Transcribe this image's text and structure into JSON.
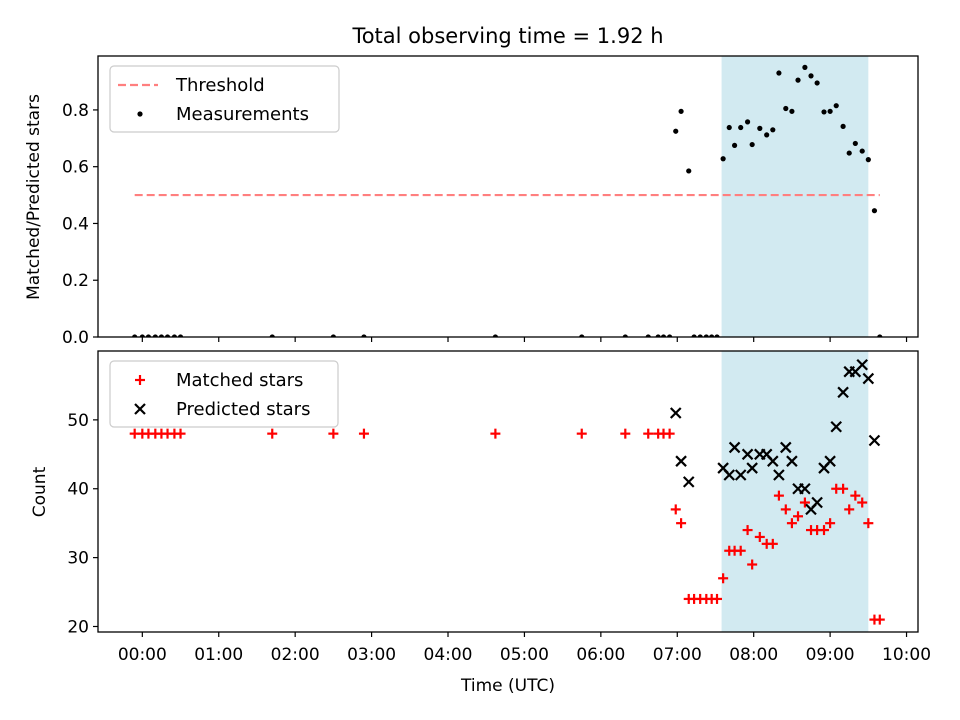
{
  "chart_data": [
    {
      "type": "scatter",
      "title": "Total observing time = 1.92 h",
      "ylabel": "Matched/Predicted stars",
      "xlabel": "",
      "xlim_hours": [
        -0.58,
        10.15
      ],
      "ylim": [
        0,
        0.99
      ],
      "yticks": [
        0.0,
        0.2,
        0.4,
        0.6,
        0.8
      ],
      "ytick_labels": [
        "0.0",
        "0.2",
        "0.4",
        "0.6",
        "0.8"
      ],
      "grid": false,
      "legend": {
        "placement": "top-left",
        "entries": [
          "Threshold",
          "Measurements"
        ]
      },
      "shaded_region_hours": [
        7.58,
        9.5
      ],
      "shaded_color": "#add8e6",
      "threshold": {
        "name": "Threshold",
        "y": 0.5,
        "x_range_hours": [
          -0.1,
          9.65
        ],
        "color": "#ff7f7f",
        "style": "dashed"
      },
      "series": [
        {
          "name": "Measurements",
          "marker": "dot",
          "color": "#000000",
          "x_hours": [
            -0.1,
            0.0,
            0.08,
            0.17,
            0.25,
            0.33,
            0.42,
            0.5,
            1.7,
            2.5,
            2.9,
            4.62,
            5.75,
            6.32,
            6.62,
            6.75,
            6.82,
            6.9,
            6.98,
            7.05,
            7.15,
            7.22,
            7.3,
            7.38,
            7.45,
            7.52,
            7.6,
            7.68,
            7.75,
            7.83,
            7.92,
            7.98,
            8.08,
            8.17,
            8.25,
            8.33,
            8.42,
            8.5,
            8.58,
            8.67,
            8.75,
            8.83,
            8.92,
            9.0,
            9.08,
            9.17,
            9.25,
            9.33,
            9.42,
            9.5,
            9.58,
            9.65
          ],
          "y": [
            0,
            0,
            0,
            0,
            0,
            0,
            0,
            0,
            0,
            0,
            0,
            0,
            0,
            0,
            0,
            0,
            0,
            0,
            0.725,
            0.795,
            0.585,
            0,
            0,
            0,
            0,
            0,
            0.628,
            0.738,
            0.675,
            0.738,
            0.758,
            0.678,
            0.735,
            0.712,
            0.73,
            0.93,
            0.805,
            0.795,
            0.905,
            0.95,
            0.92,
            0.895,
            0.793,
            0.795,
            0.815,
            0.742,
            0.648,
            0.682,
            0.655,
            0.625,
            0.445,
            0
          ]
        }
      ]
    },
    {
      "type": "scatter",
      "title": "",
      "ylabel": "Count",
      "xlabel": "Time (UTC)",
      "xlim_hours": [
        -0.58,
        10.15
      ],
      "ylim": [
        19.2,
        60.0
      ],
      "yticks": [
        20,
        30,
        40,
        50
      ],
      "ytick_labels": [
        "20",
        "30",
        "40",
        "50"
      ],
      "xticks_hours": [
        0,
        1,
        2,
        3,
        4,
        5,
        6,
        7,
        8,
        9,
        10
      ],
      "xtick_labels": [
        "00:00",
        "01:00",
        "02:00",
        "03:00",
        "04:00",
        "05:00",
        "06:00",
        "07:00",
        "08:00",
        "09:00",
        "10:00"
      ],
      "grid": false,
      "legend": {
        "placement": "top-left",
        "entries": [
          "Matched stars",
          "Predicted stars"
        ]
      },
      "shaded_region_hours": [
        7.58,
        9.5
      ],
      "shaded_color": "#add8e6",
      "series": [
        {
          "name": "Matched stars",
          "marker": "plus",
          "color": "#ff0000",
          "x_hours": [
            -0.1,
            0.0,
            0.08,
            0.17,
            0.25,
            0.33,
            0.42,
            0.5,
            1.7,
            2.5,
            2.9,
            4.62,
            5.75,
            6.32,
            6.62,
            6.75,
            6.82,
            6.9,
            6.98,
            7.05,
            7.15,
            7.22,
            7.3,
            7.38,
            7.45,
            7.52,
            7.6,
            7.68,
            7.75,
            7.83,
            7.92,
            7.98,
            8.08,
            8.17,
            8.25,
            8.33,
            8.42,
            8.5,
            8.58,
            8.67,
            8.75,
            8.83,
            8.92,
            9.0,
            9.08,
            9.17,
            9.25,
            9.33,
            9.42,
            9.5,
            9.58,
            9.65
          ],
          "y": [
            48,
            48,
            48,
            48,
            48,
            48,
            48,
            48,
            48,
            48,
            48,
            48,
            48,
            48,
            48,
            48,
            48,
            48,
            37,
            35,
            24,
            24,
            24,
            24,
            24,
            24,
            27,
            31,
            31,
            31,
            34,
            29,
            33,
            32,
            32,
            39,
            37,
            35,
            36,
            38,
            34,
            34,
            34,
            35,
            40,
            40,
            37,
            39,
            38,
            35,
            21,
            21
          ]
        },
        {
          "name": "Predicted stars",
          "marker": "x",
          "color": "#000000",
          "x_hours": [
            6.98,
            7.05,
            7.15,
            7.6,
            7.68,
            7.75,
            7.83,
            7.92,
            7.98,
            8.08,
            8.17,
            8.25,
            8.33,
            8.42,
            8.5,
            8.58,
            8.67,
            8.75,
            8.83,
            8.92,
            9.0,
            9.08,
            9.17,
            9.25,
            9.33,
            9.42,
            9.5,
            9.58
          ],
          "y": [
            51,
            44,
            41,
            43,
            42,
            46,
            42,
            45,
            43,
            45,
            45,
            44,
            42,
            46,
            44,
            40,
            40,
            37,
            38,
            43,
            44,
            49,
            54,
            57,
            57,
            58,
            56,
            47
          ]
        }
      ]
    }
  ]
}
